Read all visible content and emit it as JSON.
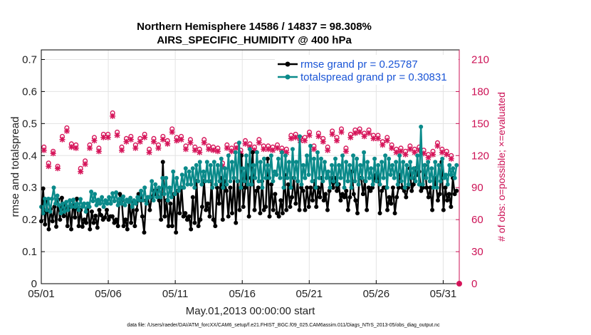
{
  "chart_data": {
    "type": "line",
    "title": "Northern Hemisphere 14586 / 14837 = 98.308%",
    "subtitle": "AIRS_SPECIFIC_HUMIDITY @ 400 hPa",
    "xlabel": "May.01,2013 00:00:00 start",
    "ylabel": "rmse and totalspread",
    "ylabel_right": "# of obs: o=possible; ×=evaluated",
    "xticks": [
      "05/01",
      "05/06",
      "05/11",
      "05/16",
      "05/21",
      "05/26",
      "05/31"
    ],
    "yticks": [
      "0",
      "0.1",
      "0.2",
      "0.3",
      "0.4",
      "0.5",
      "0.6",
      "0.7"
    ],
    "yticks_right": [
      "0",
      "30",
      "60",
      "90",
      "120",
      "150",
      "180",
      "210"
    ],
    "xlim": [
      0,
      31.2
    ],
    "ylim": [
      0,
      0.73
    ],
    "ylim_right": [
      0,
      219
    ],
    "grid": true,
    "legend_position": "top-right",
    "colors": {
      "rmse": "#000000",
      "totalspread": "#0a8a8a",
      "obs": "#d6155a",
      "legend_text": "#1a55d6",
      "right_axis": "#cc1155"
    },
    "series": [
      {
        "name": "rmse grand pr = 0.25787",
        "values": [
          0.195,
          0.297,
          0.185,
          0.255,
          0.17,
          0.233,
          0.195,
          0.24,
          0.178,
          0.262,
          0.2,
          0.268,
          0.211,
          0.245,
          0.18,
          0.24,
          0.17,
          0.26,
          0.207,
          0.265,
          0.18,
          0.23,
          0.178,
          0.2,
          0.19,
          0.238,
          0.17,
          0.225,
          0.19,
          0.212,
          0.175,
          0.23,
          0.214,
          0.2,
          0.207,
          0.23,
          0.2,
          0.21,
          0.21,
          0.19,
          0.2,
          0.18,
          0.28,
          0.26,
          0.18,
          0.2,
          0.17,
          0.26,
          0.19,
          0.255,
          0.18,
          0.23,
          0.28,
          0.27,
          0.21,
          0.16,
          0.26,
          0.27,
          0.23,
          0.27,
          0.29,
          0.28,
          0.29,
          0.26,
          0.2,
          0.38,
          0.21,
          0.26,
          0.18,
          0.25,
          0.18,
          0.28,
          0.16,
          0.29,
          0.22,
          0.3,
          0.21,
          0.22,
          0.2,
          0.21,
          0.17,
          0.27,
          0.19,
          0.32,
          0.18,
          0.2,
          0.24,
          0.32,
          0.23,
          0.25,
          0.21,
          0.32,
          0.2,
          0.18,
          0.3,
          0.25,
          0.33,
          0.2,
          0.32,
          0.29,
          0.21,
          0.3,
          0.22,
          0.33,
          0.19,
          0.32,
          0.23,
          0.4,
          0.24,
          0.3,
          0.37,
          0.21,
          0.33,
          0.41,
          0.23,
          0.29,
          0.3,
          0.22,
          0.32,
          0.23,
          0.24,
          0.39,
          0.21,
          0.31,
          0.23,
          0.28,
          0.22,
          0.21,
          0.26,
          0.22,
          0.34,
          0.23,
          0.31,
          0.24,
          0.27,
          0.33,
          0.25,
          0.32,
          0.23,
          0.3,
          0.29,
          0.23,
          0.3,
          0.24,
          0.3,
          0.26,
          0.32,
          0.24,
          0.3,
          0.27,
          0.33,
          0.26,
          0.28,
          0.23,
          0.29,
          0.33,
          0.3,
          0.33,
          0.29,
          0.31,
          0.26,
          0.28,
          0.27,
          0.29,
          0.23,
          0.27,
          0.35,
          0.28,
          0.26,
          0.22,
          0.33,
          0.33,
          0.28,
          0.32,
          0.23,
          0.3,
          0.29,
          0.3,
          0.33,
          0.34,
          0.34,
          0.22,
          0.29,
          0.3,
          0.3,
          0.23,
          0.27,
          0.25,
          0.3,
          0.22,
          0.27,
          0.3,
          0.34,
          0.3,
          0.29,
          0.27,
          0.3,
          0.36,
          0.29,
          0.31,
          0.36,
          0.34,
          0.35,
          0.29,
          0.3,
          0.37,
          0.3,
          0.27,
          0.3,
          0.23,
          0.33,
          0.31,
          0.26,
          0.28,
          0.38,
          0.23,
          0.3,
          0.26,
          0.28,
          0.24,
          0.33,
          0.28,
          0.29
        ]
      },
      {
        "name": "totalspread grand pr = 0.30831",
        "values": [
          0.24,
          0.22,
          0.265,
          0.23,
          0.265,
          0.225,
          0.265,
          0.3,
          0.25,
          0.275,
          0.245,
          0.22,
          0.25,
          0.225,
          0.255,
          0.23,
          0.26,
          0.24,
          0.262,
          0.24,
          0.25,
          0.23,
          0.264,
          0.24,
          0.25,
          0.225,
          0.25,
          0.24,
          0.287,
          0.258,
          0.28,
          0.245,
          0.262,
          0.25,
          0.27,
          0.24,
          0.26,
          0.25,
          0.27,
          0.25,
          0.282,
          0.258,
          0.285,
          0.245,
          0.265,
          0.25,
          0.272,
          0.245,
          0.262,
          0.255,
          0.268,
          0.24,
          0.26,
          0.25,
          0.27,
          0.26,
          0.29,
          0.26,
          0.3,
          0.25,
          0.27,
          0.27,
          0.32,
          0.26,
          0.31,
          0.27,
          0.3,
          0.27,
          0.33,
          0.28,
          0.33,
          0.26,
          0.3,
          0.27,
          0.35,
          0.28,
          0.33,
          0.29,
          0.3,
          0.34,
          0.3,
          0.36,
          0.31,
          0.35,
          0.31,
          0.36,
          0.3,
          0.37,
          0.32,
          0.38,
          0.31,
          0.35,
          0.32,
          0.38,
          0.32,
          0.37,
          0.3,
          0.38,
          0.31,
          0.37,
          0.32,
          0.39,
          0.3,
          0.36,
          0.31,
          0.4,
          0.32,
          0.38,
          0.33,
          0.41,
          0.32,
          0.44,
          0.3,
          0.36,
          0.32,
          0.4,
          0.31,
          0.42,
          0.31,
          0.37,
          0.33,
          0.41,
          0.32,
          0.38,
          0.3,
          0.39,
          0.33,
          0.37,
          0.33,
          0.4,
          0.32,
          0.35,
          0.34,
          0.39,
          0.33,
          0.41,
          0.3,
          0.4,
          0.33,
          0.38,
          0.3,
          0.42,
          0.33,
          0.38,
          0.32,
          0.46,
          0.31,
          0.37,
          0.33,
          0.4,
          0.34,
          0.43,
          0.32,
          0.39,
          0.3,
          0.41,
          0.33,
          0.39,
          0.32,
          0.38,
          0.33,
          0.35,
          0.3,
          0.37,
          0.32,
          0.39,
          0.31,
          0.37,
          0.33,
          0.4,
          0.3,
          0.38,
          0.32,
          0.37,
          0.3,
          0.4,
          0.32,
          0.39,
          0.31,
          0.37,
          0.33,
          0.41,
          0.32,
          0.38,
          0.33,
          0.36,
          0.31,
          0.39,
          0.32,
          0.37,
          0.31,
          0.38,
          0.33,
          0.4,
          0.3,
          0.39,
          0.34,
          0.37,
          0.33,
          0.38,
          0.31,
          0.4,
          0.32,
          0.38,
          0.3,
          0.37,
          0.31,
          0.38,
          0.33,
          0.36,
          0.32,
          0.4,
          0.31,
          0.49,
          0.31,
          0.37,
          0.33,
          0.38,
          0.32,
          0.36,
          0.3,
          0.38,
          0.3,
          0.37,
          0.32,
          0.39,
          0.33,
          0.34,
          0.31,
          0.37,
          0.34,
          0.36,
          0.33,
          0.37
        ]
      },
      {
        "name": "possible",
        "marker": "o",
        "values": [
          128,
          113,
          124,
          110,
          138,
          146,
          131,
          130,
          108,
          115,
          130,
          137,
          127,
          140,
          140,
          160,
          142,
          128,
          136,
          138,
          130,
          136,
          140,
          126,
          136,
          130,
          138,
          134,
          145,
          137,
          138,
          129,
          135,
          128,
          126,
          135,
          129,
          128,
          127,
          113,
          130,
          127,
          130,
          125,
          134,
          131,
          128,
          135,
          129,
          129,
          128,
          130,
          127,
          126,
          139,
          140,
          137,
          137,
          142,
          129,
          141,
          136,
          128,
          143,
          137,
          145,
          127,
          140,
          144,
          145,
          141,
          144,
          139,
          139,
          133,
          137,
          130,
          126,
          127,
          124,
          129,
          126,
          128,
          125,
          121,
          124,
          132,
          126,
          124,
          120
        ]
      },
      {
        "name": "evaluated",
        "marker": "x",
        "values": [
          125,
          110,
          122,
          108,
          135,
          143,
          128,
          127,
          105,
          112,
          127,
          134,
          124,
          137,
          137,
          157,
          139,
          125,
          133,
          135,
          127,
          133,
          137,
          123,
          133,
          127,
          135,
          131,
          142,
          134,
          135,
          126,
          132,
          125,
          123,
          132,
          126,
          125,
          124,
          110,
          127,
          124,
          127,
          122,
          131,
          128,
          125,
          132,
          126,
          126,
          125,
          127,
          124,
          123,
          136,
          137,
          134,
          134,
          139,
          126,
          138,
          133,
          125,
          140,
          134,
          142,
          124,
          137,
          141,
          142,
          138,
          141,
          136,
          136,
          130,
          134,
          127,
          123,
          124,
          121,
          126,
          123,
          125,
          122,
          118,
          121,
          129,
          123,
          121,
          117
        ]
      }
    ]
  },
  "footer": "data file: /Users/raeder/DAI/ATM_forcXX/CAM6_setup/f.e21.FHIST_BGC.f09_025.CAM6assim.011/Diags_NTrS_2013-05/obs_diag_output.nc"
}
